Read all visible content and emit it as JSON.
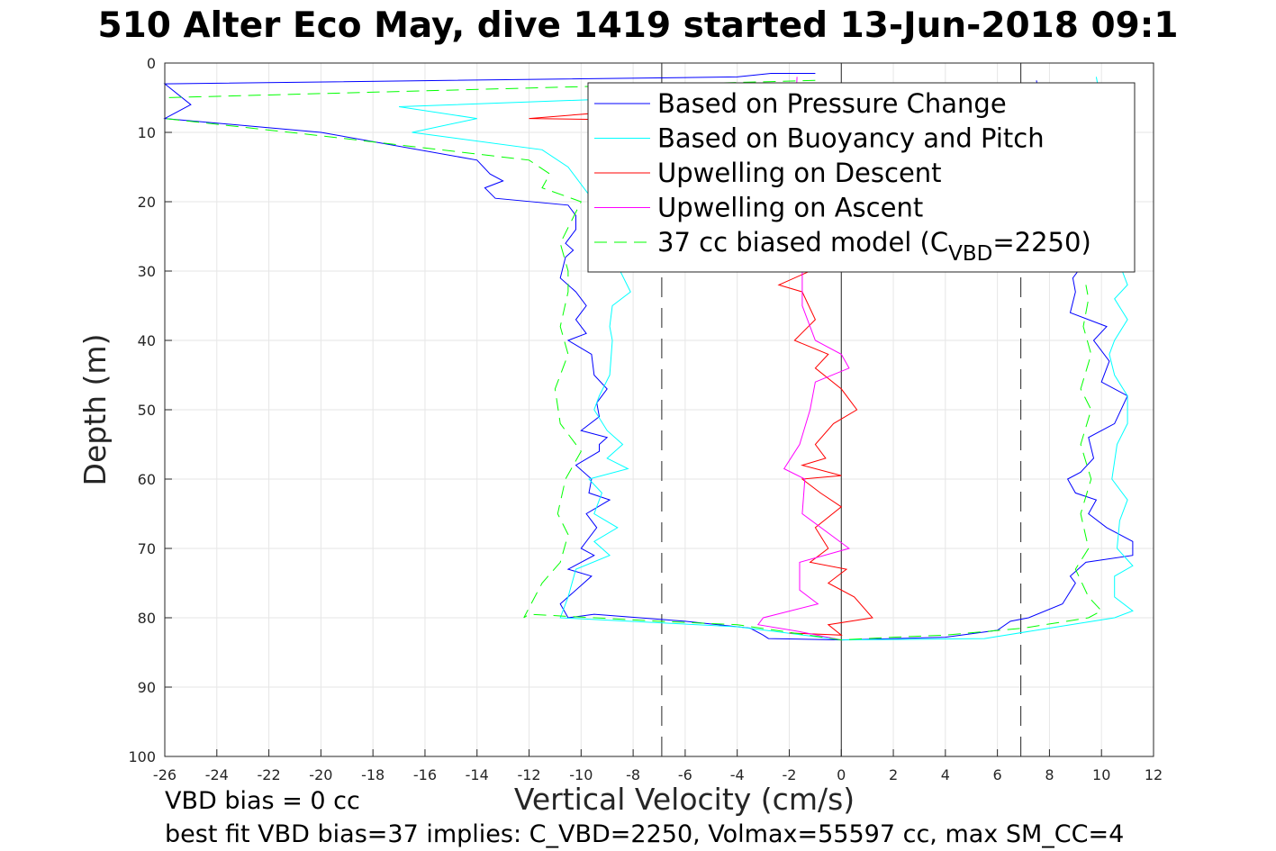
{
  "title": "510 Alter Eco May, dive 1419 started 13-Jun-2018 09:1",
  "notes": {
    "line1": "VBD bias = 0 cc",
    "line2": "best fit VBD bias=37 implies: C_VBD=2250, Volmax=55597 cc, max SM_CC=4"
  },
  "chart_data": {
    "type": "line",
    "title": "510 Alter Eco May, dive 1419 started 13-Jun-2018 09:1",
    "xlabel": "Vertical Velocity (cm/s)",
    "ylabel": "Depth (m)",
    "xlim": [
      -26,
      12
    ],
    "ylim": [
      0,
      100
    ],
    "y_reversed": true,
    "grid": true,
    "xticks": [
      -26,
      -24,
      -22,
      -20,
      -18,
      -16,
      -14,
      -12,
      -10,
      -8,
      -6,
      -4,
      -2,
      0,
      2,
      4,
      6,
      8,
      10,
      12
    ],
    "yticks": [
      0,
      10,
      20,
      30,
      40,
      50,
      60,
      70,
      80,
      90,
      100
    ],
    "vlines": [
      {
        "x": -6.9,
        "style": "dashed"
      },
      {
        "x": 0,
        "style": "solid"
      },
      {
        "x": 6.9,
        "style": "dashed"
      }
    ],
    "legend_placement": "top-right",
    "series": [
      {
        "name": "Based on Pressure Change",
        "label": "Based on Pressure Change",
        "color": "#0000ff",
        "dash": false,
        "points": [
          [
            -1,
            1.5
          ],
          [
            -2.7,
            1.5
          ],
          [
            -4,
            2
          ],
          [
            -26,
            3
          ],
          [
            -25,
            6
          ],
          [
            -26,
            8
          ],
          [
            -20,
            10
          ],
          [
            -14,
            14
          ],
          [
            -13.5,
            16
          ],
          [
            -13,
            17
          ],
          [
            -13.7,
            18
          ],
          [
            -13.3,
            19.5
          ],
          [
            -10.5,
            20.5
          ],
          [
            -10.2,
            22
          ],
          [
            -10.2,
            24
          ],
          [
            -10.6,
            26
          ],
          [
            -10.3,
            27
          ],
          [
            -10.6,
            28
          ],
          [
            -10.8,
            31
          ],
          [
            -10.2,
            33
          ],
          [
            -9.8,
            35
          ],
          [
            -10.2,
            37
          ],
          [
            -9.8,
            39
          ],
          [
            -10.5,
            40
          ],
          [
            -9.6,
            42
          ],
          [
            -9.5,
            45
          ],
          [
            -9,
            47
          ],
          [
            -9.4,
            49
          ],
          [
            -9.3,
            51
          ],
          [
            -10,
            53
          ],
          [
            -9,
            54
          ],
          [
            -9.3,
            55
          ],
          [
            -9.3,
            56
          ],
          [
            -10.2,
            58
          ],
          [
            -9.6,
            60
          ],
          [
            -9.7,
            62
          ],
          [
            -8.9,
            63
          ],
          [
            -9.8,
            65
          ],
          [
            -9.4,
            67
          ],
          [
            -10,
            70
          ],
          [
            -9.5,
            71
          ],
          [
            -10.5,
            73
          ],
          [
            -9.6,
            74
          ],
          [
            -10.8,
            78
          ],
          [
            -10.5,
            80
          ],
          [
            -9.5,
            79.5
          ],
          [
            -6,
            80.5
          ],
          [
            -3.5,
            81.5
          ],
          [
            -3,
            82.5
          ],
          [
            -2.8,
            83
          ],
          [
            0,
            83.2
          ],
          [
            4,
            82.8
          ],
          [
            6,
            81.8
          ],
          [
            6.5,
            80.5
          ],
          [
            7.2,
            80
          ],
          [
            8.5,
            78
          ],
          [
            9,
            75
          ],
          [
            8.8,
            74
          ],
          [
            9.4,
            72
          ],
          [
            11.2,
            71
          ],
          [
            11.2,
            69
          ],
          [
            10.2,
            67
          ],
          [
            9.5,
            65
          ],
          [
            9.8,
            63
          ],
          [
            9,
            62
          ],
          [
            8.7,
            60
          ],
          [
            9.2,
            59
          ],
          [
            9.7,
            57
          ],
          [
            9.5,
            54
          ],
          [
            10.5,
            52
          ],
          [
            11,
            48
          ],
          [
            10,
            46
          ],
          [
            10.3,
            43
          ],
          [
            9.7,
            40
          ],
          [
            10.2,
            38
          ],
          [
            8.8,
            36
          ],
          [
            9,
            33
          ],
          [
            8.9,
            31
          ],
          [
            9.5,
            28
          ],
          [
            8.5,
            20
          ],
          [
            7.8,
            10
          ],
          [
            7.5,
            2.5
          ]
        ]
      },
      {
        "name": "Based on Buoyancy and Pitch",
        "label": "Based on Buoyancy and Pitch",
        "color": "#00ffff",
        "dash": false,
        "points": [
          [
            -4,
            4.5
          ],
          [
            -17,
            6.3
          ],
          [
            -14,
            8
          ],
          [
            -16.5,
            10
          ],
          [
            -11.5,
            12.5
          ],
          [
            -10.5,
            15
          ],
          [
            -9.5,
            20
          ],
          [
            -8.8,
            26
          ],
          [
            -8.5,
            30
          ],
          [
            -8.1,
            33
          ],
          [
            -8.8,
            35
          ],
          [
            -8.9,
            38
          ],
          [
            -8.8,
            40
          ],
          [
            -8.9,
            45
          ],
          [
            -9.3,
            48
          ],
          [
            -9.5,
            50
          ],
          [
            -9,
            53
          ],
          [
            -8.4,
            55
          ],
          [
            -9,
            57
          ],
          [
            -8.2,
            58.5
          ],
          [
            -9.7,
            60
          ],
          [
            -9.2,
            62
          ],
          [
            -9.5,
            65
          ],
          [
            -8.6,
            67
          ],
          [
            -9.5,
            69
          ],
          [
            -8.9,
            71
          ],
          [
            -10.2,
            73
          ],
          [
            -10.5,
            77
          ],
          [
            -10.8,
            80
          ],
          [
            -4,
            81.3
          ],
          [
            -2.5,
            82
          ],
          [
            0,
            83.2
          ],
          [
            5.5,
            83
          ],
          [
            8,
            81.5
          ],
          [
            10.5,
            80
          ],
          [
            11.2,
            79
          ],
          [
            10.5,
            77
          ],
          [
            10.5,
            74
          ],
          [
            11.2,
            72.5
          ],
          [
            10.6,
            70
          ],
          [
            10.7,
            66
          ],
          [
            11,
            63
          ],
          [
            10.4,
            60
          ],
          [
            10.6,
            55
          ],
          [
            11,
            52
          ],
          [
            11,
            48
          ],
          [
            10.5,
            45
          ],
          [
            10.3,
            42
          ],
          [
            10.5,
            40
          ],
          [
            11,
            37
          ],
          [
            10.5,
            34
          ],
          [
            11,
            32
          ],
          [
            10.8,
            30
          ],
          [
            10.5,
            20
          ],
          [
            10.2,
            10
          ],
          [
            9.8,
            2
          ]
        ]
      },
      {
        "name": "Upwelling on Descent",
        "label": "Upwelling on Descent",
        "color": "#ff0000",
        "dash": false,
        "points": [
          [
            -2,
            5
          ],
          [
            -12,
            8
          ],
          [
            -3,
            8.5
          ],
          [
            -1.5,
            15
          ],
          [
            -1.2,
            25
          ],
          [
            -0.6,
            29
          ],
          [
            -2.4,
            32
          ],
          [
            -1.5,
            33
          ],
          [
            -1,
            37
          ],
          [
            -1.8,
            40
          ],
          [
            -0.5,
            42
          ],
          [
            -1,
            44
          ],
          [
            0,
            47
          ],
          [
            0.6,
            50
          ],
          [
            -0.3,
            52
          ],
          [
            -1,
            55
          ],
          [
            -0.6,
            57
          ],
          [
            -1.5,
            58
          ],
          [
            0,
            59.5
          ],
          [
            -1.5,
            60
          ],
          [
            -0.8,
            62
          ],
          [
            0,
            64
          ],
          [
            -1,
            67
          ],
          [
            -0.5,
            70
          ],
          [
            -1.2,
            72
          ],
          [
            0.2,
            73
          ],
          [
            -0.5,
            75
          ],
          [
            0.5,
            77
          ],
          [
            1.2,
            80
          ],
          [
            -0.5,
            81
          ],
          [
            0,
            82.5
          ],
          [
            -2,
            82.2
          ]
        ]
      },
      {
        "name": "Upwelling on Ascent",
        "label": "Upwelling on Ascent",
        "color": "#ff00ff",
        "dash": false,
        "points": [
          [
            0,
            83.2
          ],
          [
            -1.6,
            82
          ],
          [
            -3.2,
            81
          ],
          [
            -3,
            80
          ],
          [
            -0.9,
            78
          ],
          [
            -1.6,
            76
          ],
          [
            -1.6,
            72
          ],
          [
            0.3,
            70
          ],
          [
            -1.5,
            65
          ],
          [
            -1.4,
            60
          ],
          [
            -2.2,
            58.5
          ],
          [
            -1.6,
            55
          ],
          [
            -1.2,
            50
          ],
          [
            -1,
            46
          ],
          [
            0.3,
            44
          ],
          [
            0,
            42
          ],
          [
            -1,
            40
          ],
          [
            -1.5,
            35
          ],
          [
            -1.5,
            30
          ],
          [
            -1.6,
            20
          ],
          [
            -1.8,
            10
          ],
          [
            -1.7,
            2
          ]
        ]
      },
      {
        "name": "37 cc biased model",
        "label_parts": [
          "37 cc biased model (C",
          "VBD",
          "=2250)"
        ],
        "color": "#00ff00",
        "dash": true,
        "points": [
          [
            -1,
            2.5
          ],
          [
            -26,
            5
          ],
          [
            -26,
            8
          ],
          [
            -20,
            10.5
          ],
          [
            -12,
            14
          ],
          [
            -11.2,
            16
          ],
          [
            -11.5,
            18
          ],
          [
            -10,
            20
          ],
          [
            -10.8,
            26
          ],
          [
            -10.5,
            30
          ],
          [
            -10.5,
            33
          ],
          [
            -10.8,
            38
          ],
          [
            -10.5,
            42
          ],
          [
            -11,
            47
          ],
          [
            -10.8,
            52
          ],
          [
            -10,
            56
          ],
          [
            -10.6,
            60
          ],
          [
            -10.9,
            65
          ],
          [
            -10.5,
            68
          ],
          [
            -10.8,
            72
          ],
          [
            -11.5,
            75
          ],
          [
            -12.2,
            80
          ],
          [
            -12,
            79.5
          ],
          [
            -7,
            80.5
          ],
          [
            -4,
            81
          ],
          [
            0,
            83.2
          ],
          [
            2,
            82.8
          ],
          [
            4,
            82.5
          ],
          [
            7,
            81.5
          ],
          [
            9.5,
            80
          ],
          [
            10,
            79
          ],
          [
            9.5,
            77
          ],
          [
            9,
            73
          ],
          [
            9.5,
            70
          ],
          [
            9.2,
            65
          ],
          [
            9.6,
            60
          ],
          [
            9.2,
            55
          ],
          [
            9.6,
            50
          ],
          [
            9.2,
            47
          ],
          [
            9.6,
            42
          ],
          [
            9.3,
            38
          ],
          [
            9.5,
            34
          ],
          [
            9.4,
            32
          ]
        ]
      }
    ]
  }
}
